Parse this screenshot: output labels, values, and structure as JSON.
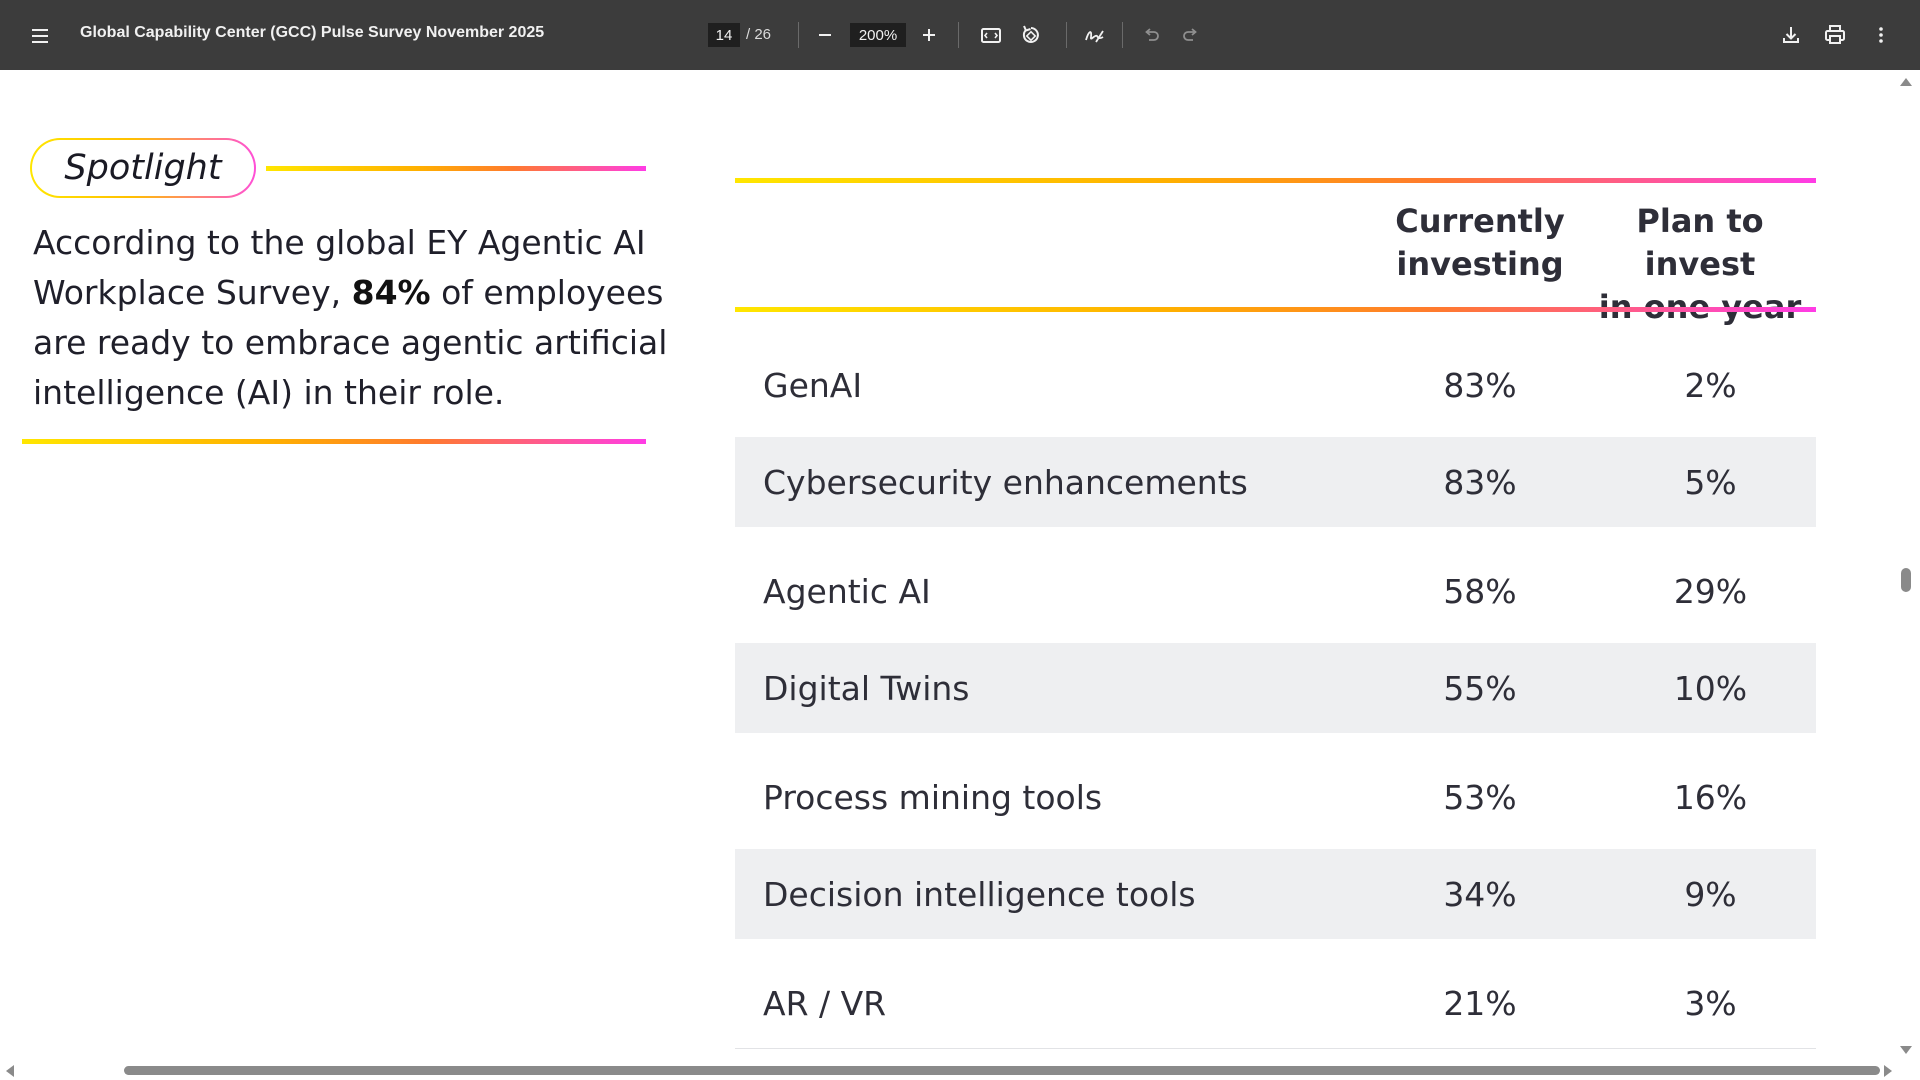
{
  "viewer": {
    "title": "Global Capability Center (GCC) Pulse Survey November 2025",
    "current_page": "14",
    "total_pages": "/ 26",
    "zoom": "200%",
    "icons": [
      "menu-icon",
      "zoom-out-icon",
      "zoom-in-icon",
      "fit-page-icon",
      "rotate-icon",
      "annotate-icon",
      "undo-icon",
      "redo-icon",
      "download-icon",
      "print-icon",
      "more-options-icon"
    ]
  },
  "spotlight": {
    "label": "Spotlight",
    "text_before": "According to the global EY Agentic AI Workplace Survey, ",
    "highlight": "84%",
    "text_after": " of employees are ready to embrace agentic artificial intelligence (AI) in their role."
  },
  "table": {
    "headers": {
      "current_line1": "Currently",
      "current_line2": "investing",
      "plan_line1": "Plan to invest",
      "plan_line2": "in one year"
    },
    "rows": [
      {
        "label": "GenAI",
        "current": "83%",
        "plan": "2%"
      },
      {
        "label": "Cybersecurity enhancements",
        "current": "83%",
        "plan": "5%"
      },
      {
        "label": "Agentic AI",
        "current": "58%",
        "plan": "29%"
      },
      {
        "label": "Digital Twins",
        "current": "55%",
        "plan": "10%"
      },
      {
        "label": "Process mining tools",
        "current": "53%",
        "plan": "16%"
      },
      {
        "label": "Decision intelligence tools",
        "current": "34%",
        "plan": "9%"
      },
      {
        "label": "AR / VR",
        "current": "21%",
        "plan": "3%"
      }
    ]
  },
  "colors": {
    "toolbar": "#3c3c3c",
    "gradient_start": "#ffe600",
    "gradient_end": "#ff3ce6",
    "row_shade": "#eeeff1"
  }
}
